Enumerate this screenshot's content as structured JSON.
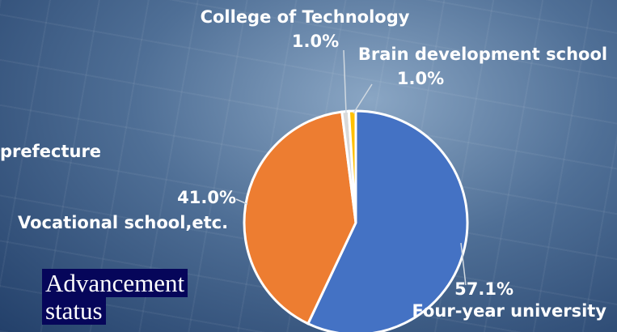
{
  "chart_data": {
    "type": "pie",
    "title": "Advancement status",
    "annotations": [
      "prefecture"
    ],
    "categories": [
      "Four-year university",
      "Vocational school,etc.",
      "College of Technology",
      "Brain development school"
    ],
    "values": [
      57.1,
      41.0,
      1.0,
      1.0
    ],
    "value_labels": [
      "57.1%",
      "41.0%",
      "1.0%",
      "1.0%"
    ],
    "colors": [
      "#4472c4",
      "#ed7d31",
      "#d9d9d9",
      "#ffc000"
    ]
  }
}
